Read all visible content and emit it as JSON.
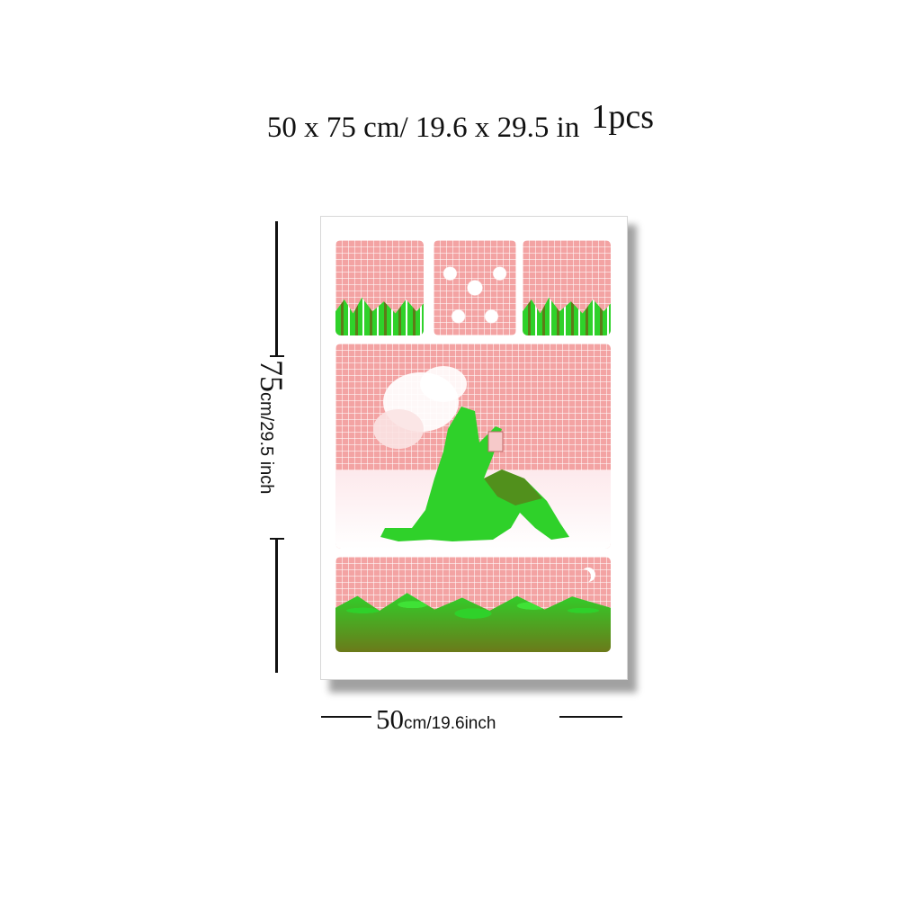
{
  "header": {
    "dimensions_text": "50 x 75 cm/ 19.6  x  29.5 in",
    "quantity_text": "1pcs"
  },
  "height_label": {
    "value": "75",
    "unit_text": "cm/29.5 inch"
  },
  "width_label": {
    "value": "50",
    "unit_text": "cm/19.6inch"
  },
  "colors": {
    "pink": "#f3a3a3",
    "green": "#2fd12a",
    "olive": "#6b7a1a",
    "line": "#111111"
  },
  "artwork": {
    "panels": [
      "top-left-hills",
      "top-center-raindrops",
      "top-right-hills",
      "main-figure-scene",
      "bottom-foliage-scene"
    ]
  }
}
